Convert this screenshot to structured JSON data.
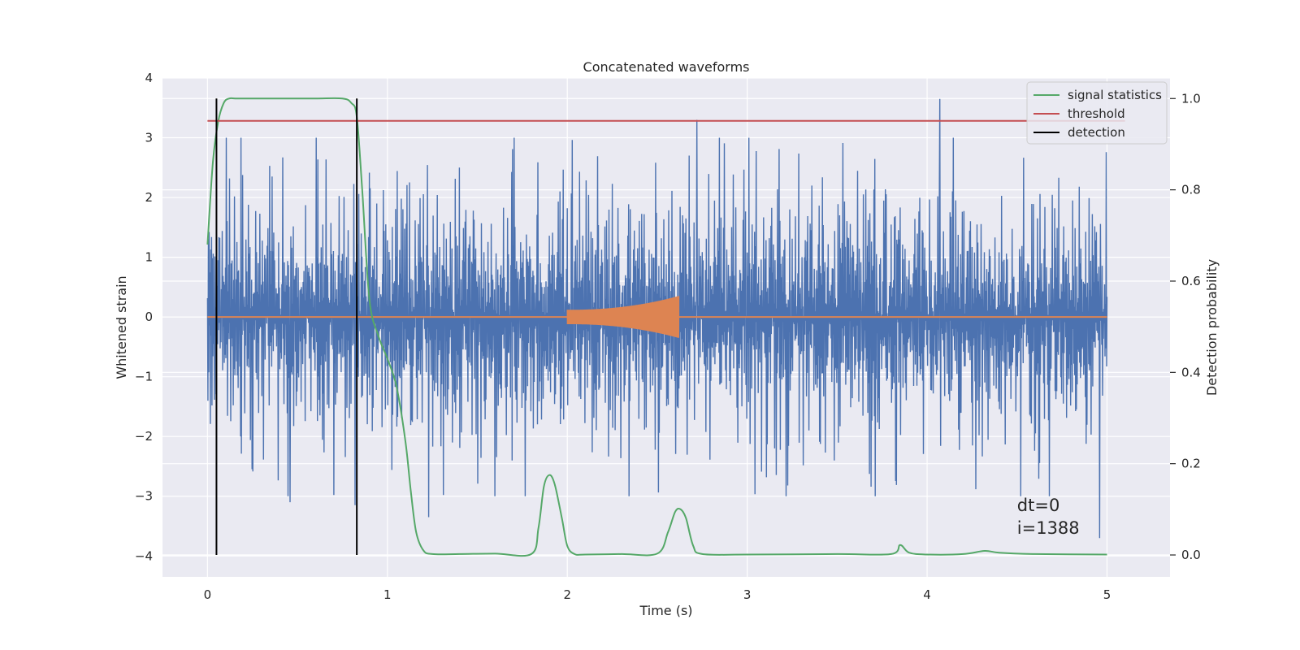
{
  "chart_data": {
    "type": "line",
    "title": "Concatenated waveforms",
    "xlabel": "Time (s)",
    "ylabel_left": "Whitened strain",
    "ylabel_right": "Detection probability",
    "xlim": [
      -0.25,
      5.35
    ],
    "ylim_left": [
      -4.35,
      4.0
    ],
    "ylim_right": [
      -0.048,
      1.045
    ],
    "xticks": [
      0,
      1,
      2,
      3,
      4,
      5
    ],
    "yticks_left": [
      -4,
      -3,
      -2,
      -1,
      0,
      1,
      2,
      3,
      4
    ],
    "yticks_right": [
      0.0,
      0.2,
      0.4,
      0.6,
      0.8,
      1.0
    ],
    "ytick_labels_left": [
      "−4",
      "−3",
      "−2",
      "−1",
      "0",
      "1",
      "2",
      "3",
      "4"
    ],
    "ytick_labels_right": [
      "0.0",
      "0.2",
      "0.4",
      "0.6",
      "0.8",
      "1.0"
    ],
    "grid": true,
    "legend_position": "upper-right",
    "legend": [
      {
        "label": "signal statistics",
        "color": "#55a868"
      },
      {
        "label": "threshold",
        "color": "#c44e52"
      },
      {
        "label": "detection",
        "color": "#000000"
      }
    ],
    "series": [
      {
        "kind": "noise",
        "axis": "left",
        "color": "#4c72b0",
        "x_range": [
          0,
          5
        ],
        "typical_amplitude": 2.0,
        "peaks": [
          {
            "x": 0.46,
            "y": -3.1
          },
          {
            "x": 0.82,
            "y": -3.15
          },
          {
            "x": 1.23,
            "y": -3.35
          },
          {
            "x": 2.72,
            "y": 3.3
          },
          {
            "x": 4.07,
            "y": 3.65
          },
          {
            "x": 4.96,
            "y": -3.7
          },
          {
            "x": 4.68,
            "y": -3.0
          }
        ]
      },
      {
        "kind": "chirp",
        "axis": "left",
        "color": "#dd8452",
        "x_range": [
          0,
          5
        ],
        "burst_start": 2.0,
        "burst_end": 2.62,
        "amp_start": 0.12,
        "amp_end": 0.35
      },
      {
        "name": "signal statistics",
        "axis": "right",
        "color": "#55a868",
        "x": [
          0.0,
          0.03,
          0.06,
          0.09,
          0.12,
          0.16,
          0.2,
          0.4,
          0.6,
          0.75,
          0.8,
          0.83,
          0.86,
          0.9,
          0.95,
          1.0,
          1.05,
          1.1,
          1.13,
          1.16,
          1.2,
          1.25,
          1.4,
          1.6,
          1.8,
          1.84,
          1.87,
          1.9,
          1.93,
          1.97,
          2.0,
          2.04,
          2.1,
          2.3,
          2.5,
          2.56,
          2.6,
          2.63,
          2.66,
          2.7,
          2.75,
          3.0,
          3.5,
          3.8,
          3.85,
          3.9,
          4.0,
          4.2,
          4.32,
          4.4,
          4.6,
          5.0
        ],
        "y": [
          0.68,
          0.86,
          0.95,
          0.99,
          1.0,
          1.0,
          1.0,
          1.0,
          1.0,
          1.0,
          0.99,
          0.96,
          0.8,
          0.56,
          0.48,
          0.43,
          0.37,
          0.25,
          0.14,
          0.05,
          0.01,
          0.002,
          0.002,
          0.003,
          0.002,
          0.06,
          0.15,
          0.175,
          0.155,
          0.08,
          0.02,
          0.002,
          0.001,
          0.002,
          0.003,
          0.05,
          0.095,
          0.1,
          0.08,
          0.02,
          0.002,
          0.001,
          0.002,
          0.002,
          0.022,
          0.005,
          0.001,
          0.002,
          0.009,
          0.005,
          0.002,
          0.001
        ]
      },
      {
        "name": "threshold",
        "axis": "right",
        "color": "#c44e52",
        "x": [
          0.0,
          5.1
        ],
        "y": [
          0.951,
          0.951
        ]
      }
    ],
    "detections": [
      {
        "x": 0.05,
        "y_range": [
          0.0,
          1.0
        ]
      },
      {
        "x": 0.83,
        "y_range": [
          0.0,
          1.0
        ]
      }
    ],
    "annotation": {
      "line1": "dt=0",
      "line2": "i=1388",
      "x": 4.5,
      "y_right": 0.1
    }
  }
}
